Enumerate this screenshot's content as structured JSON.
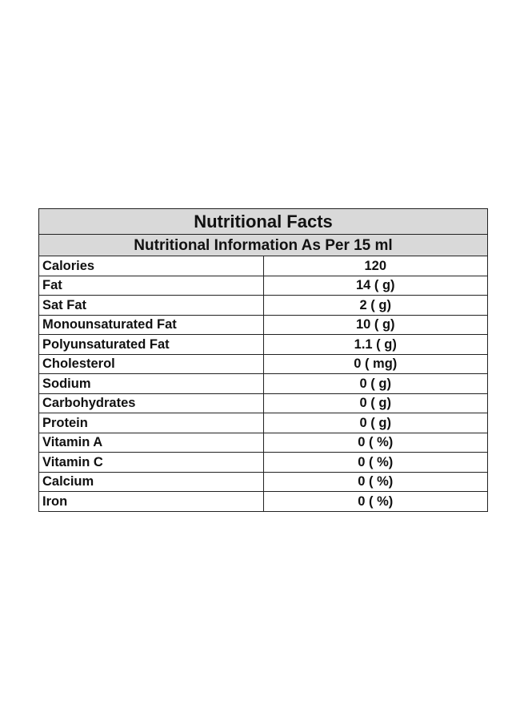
{
  "table": {
    "title": "Nutritional Facts",
    "subtitle": "Nutritional Information As Per 15 ml",
    "rows": [
      {
        "label": "Calories",
        "value": "120"
      },
      {
        "label": "Fat",
        "value": "14 ( g)"
      },
      {
        "label": "Sat Fat",
        "value": "2 ( g)"
      },
      {
        "label": "Monounsaturated Fat",
        "value": "10 ( g)"
      },
      {
        "label": "Polyunsaturated Fat",
        "value": "1.1 ( g)"
      },
      {
        "label": "Cholesterol",
        "value": "0 ( mg)"
      },
      {
        "label": "Sodium",
        "value": "0 ( g)"
      },
      {
        "label": "Carbohydrates",
        "value": "0 ( g)"
      },
      {
        "label": "Protein",
        "value": "0 ( g)"
      },
      {
        "label": "Vitamin A",
        "value": "0 ( %)"
      },
      {
        "label": "Vitamin C",
        "value": "0 ( %)"
      },
      {
        "label": "Calcium",
        "value": "0 ( %)"
      },
      {
        "label": "Iron",
        "value": "0 ( %)"
      }
    ]
  },
  "colors": {
    "header_background": "#d9d9d9",
    "border": "#222222",
    "text": "#111111",
    "page_background": "#ffffff"
  }
}
